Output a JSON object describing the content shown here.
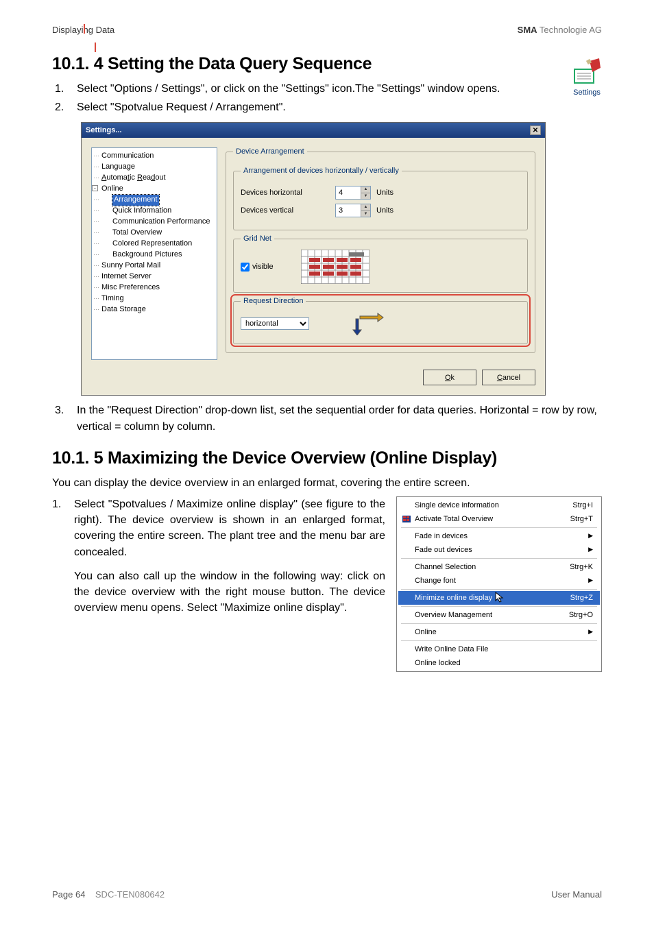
{
  "header": {
    "left": "Displaying Data",
    "right_bold": "SMA",
    "right_light": " Technologie AG"
  },
  "icon_caption": "Settings",
  "h1": "10.1. 4 Setting the Data Query Sequence",
  "s1": {
    "n": "1.",
    "t": "Select \"Options / Settings\", or click on the \"Settings\" icon.The \"Settings\" window opens."
  },
  "s2": {
    "n": "2.",
    "t": "Select \"Spotvalue Request / Arrangement\"."
  },
  "dialog": {
    "title": "Settings...",
    "tree": {
      "items": [
        "Communication",
        "Language",
        "Automatic Readout",
        "Online",
        "Arrangement",
        "Quick Information",
        "Communication Performance",
        "Total Overview",
        "Colored Representation",
        "Background Pictures",
        "Sunny Portal Mail",
        "Internet Server",
        "Misc Preferences",
        "Timing",
        "Data Storage"
      ]
    },
    "panel": {
      "fs1_title": "Device Arrangement",
      "fs2_title": "Arrangement of devices horizontally / vertically",
      "row1_label": "Devices horizontal",
      "row1_val": "4",
      "units": "Units",
      "row2_label": "Devices vertical",
      "row2_val": "3",
      "fs3_title": "Grid Net",
      "visible": "visible",
      "fs4_title": "Request Direction",
      "direction": "horizontal"
    },
    "ok": "Ok",
    "cancel": "Cancel"
  },
  "s3": {
    "n": "3.",
    "t": "In the \"Request Direction\" drop-down list, set the sequential order for data queries. Horizontal = row by row, vertical = column by column."
  },
  "h2": "10.1. 5 Maximizing the Device Overview (Online Display)",
  "p1": "You can display the device overview in an enlarged format, covering the entire screen.",
  "s4": {
    "n": "1.",
    "t": "Select \"Spotvalues / Maximize online display\" (see figure to the right). The device overview is shown in an enlarged format, covering the entire screen. The plant tree and the menu bar are concealed."
  },
  "p2": "You can also call up the window in the following way: click on the device overview with the right mouse button. The device overview menu opens. Select \"Maximize online display\".",
  "menu": {
    "items": [
      {
        "l": "Single device information",
        "r": "Strg+I",
        "sel": false,
        "icon": false
      },
      {
        "l": "Activate Total Overview",
        "r": "Strg+T",
        "sel": false,
        "icon": true
      },
      {
        "sep": true
      },
      {
        "l": "Fade in devices",
        "r": "▶",
        "sel": false
      },
      {
        "l": "Fade out devices",
        "r": "▶",
        "sel": false
      },
      {
        "sep": true
      },
      {
        "l": "Channel Selection",
        "r": "Strg+K",
        "sel": false
      },
      {
        "l": "Change font",
        "r": "▶",
        "sel": false
      },
      {
        "sep": true
      },
      {
        "l": "Minimize online display",
        "r": "Strg+Z",
        "sel": true
      },
      {
        "sep": true
      },
      {
        "l": "Overview Management",
        "r": "Strg+O",
        "sel": false
      },
      {
        "sep": true
      },
      {
        "l": "Online",
        "r": "▶",
        "sel": false
      },
      {
        "sep": true
      },
      {
        "l": "Write Online Data File",
        "r": "",
        "sel": false
      },
      {
        "l": "Online locked",
        "r": "",
        "sel": false
      }
    ]
  },
  "footer": {
    "page": "Page 64",
    "doc": "SDC-TEN080642",
    "right": "User Manual"
  },
  "colors": {
    "red": "#d9483b",
    "blue": "#316ac5"
  }
}
